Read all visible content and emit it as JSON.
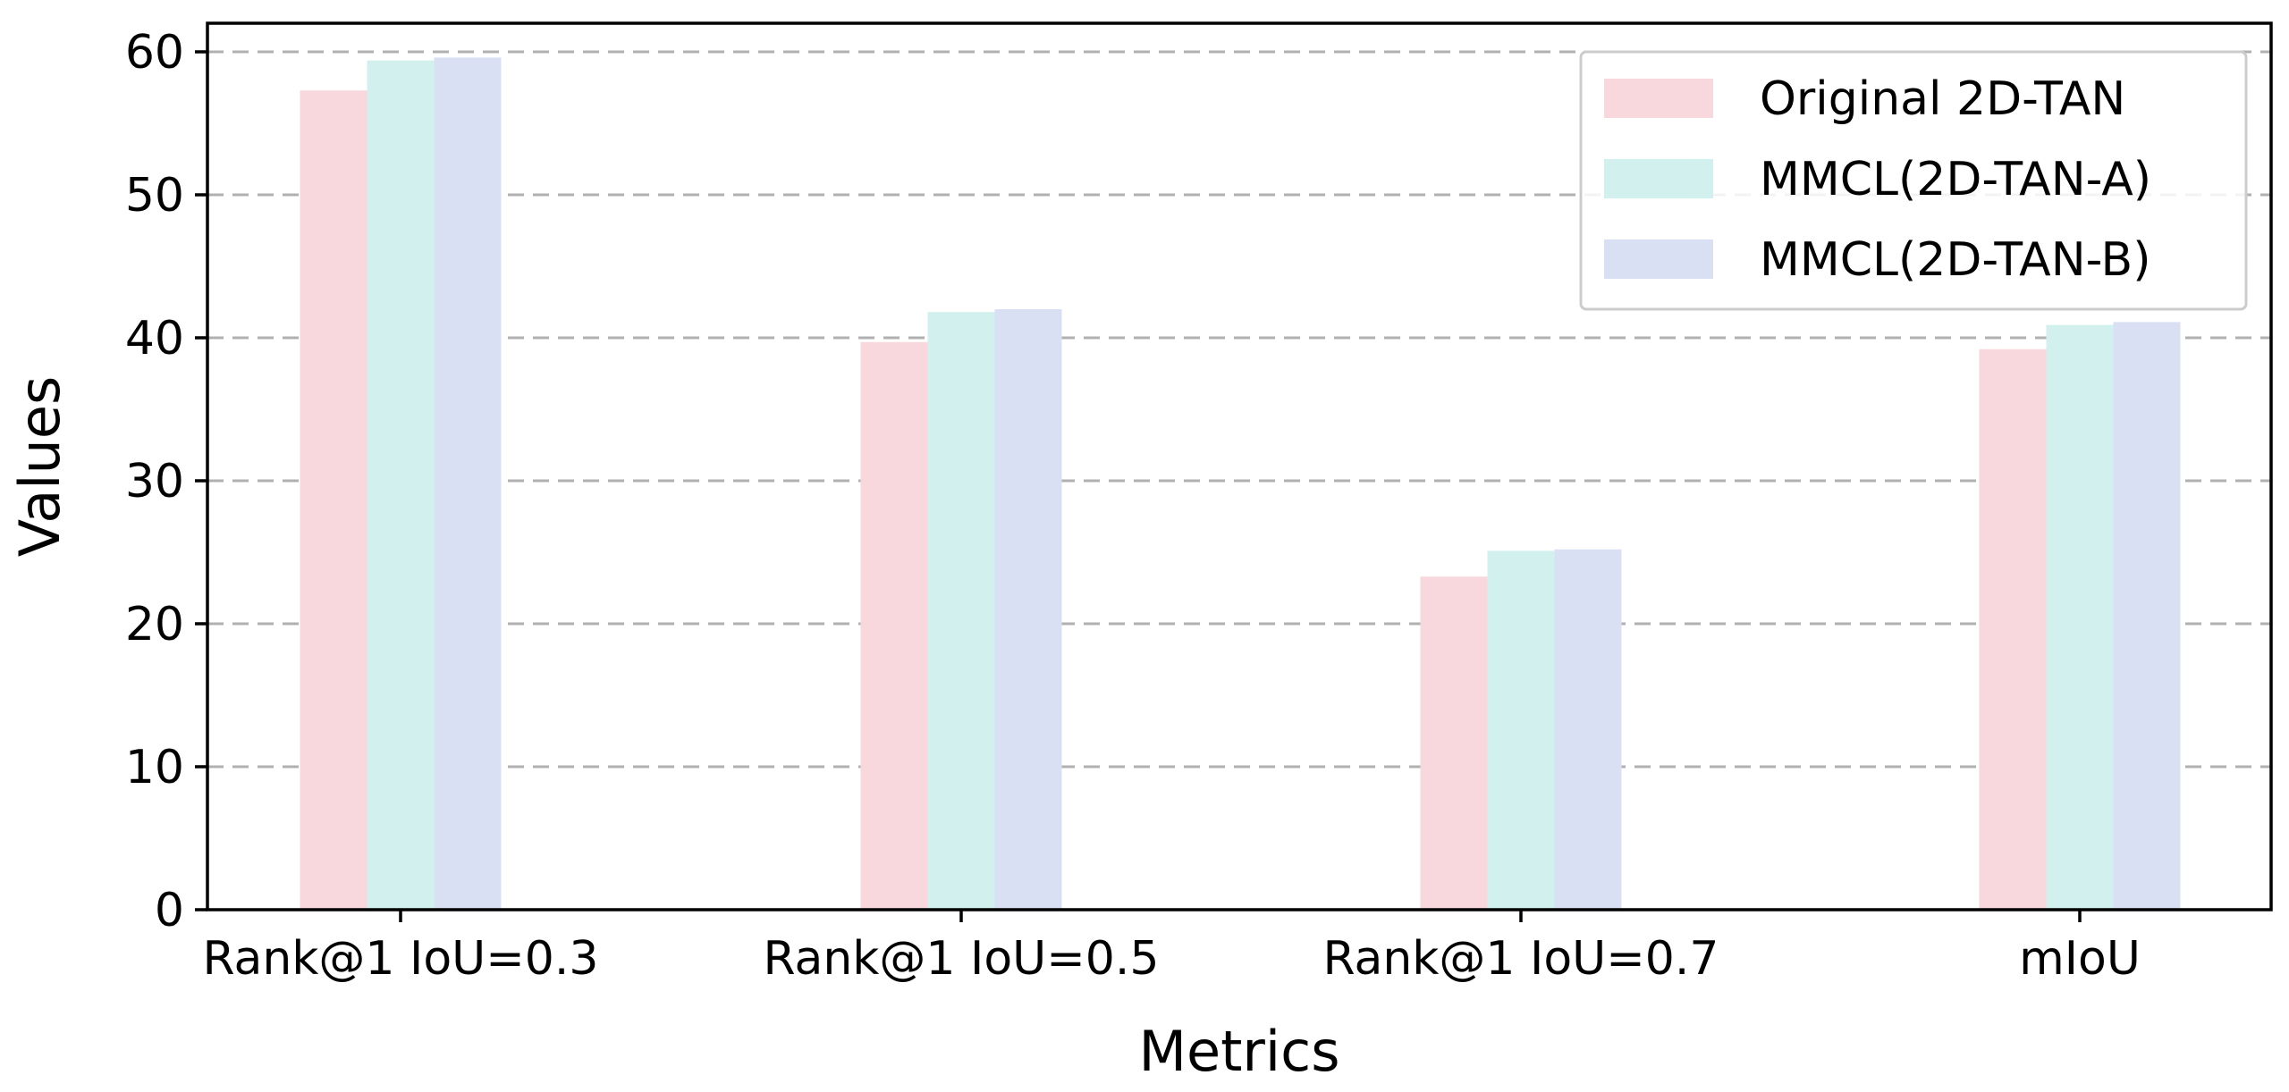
{
  "chart_data": {
    "type": "bar",
    "xlabel": "Metrics",
    "ylabel": "Values",
    "ylim": [
      0,
      62
    ],
    "yticks": [
      0,
      10,
      20,
      30,
      40,
      50,
      60
    ],
    "grid": "y-dashed",
    "legend_position": "top-right",
    "categories": [
      "Rank@1 IoU=0.3",
      "Rank@1 IoU=0.5",
      "Rank@1 IoU=0.7",
      "mIoU"
    ],
    "series": [
      {
        "name": "Original 2D-TAN",
        "color": "#f8d7dd",
        "values": [
          57.3,
          39.7,
          23.3,
          39.2
        ]
      },
      {
        "name": "MMCL(2D-TAN-A)",
        "color": "#d2f1ee",
        "values": [
          59.4,
          41.8,
          25.1,
          40.9
        ]
      },
      {
        "name": "MMCL(2D-TAN-B)",
        "color": "#d9e0f3",
        "values": [
          59.6,
          42.0,
          25.2,
          41.1
        ]
      }
    ]
  }
}
